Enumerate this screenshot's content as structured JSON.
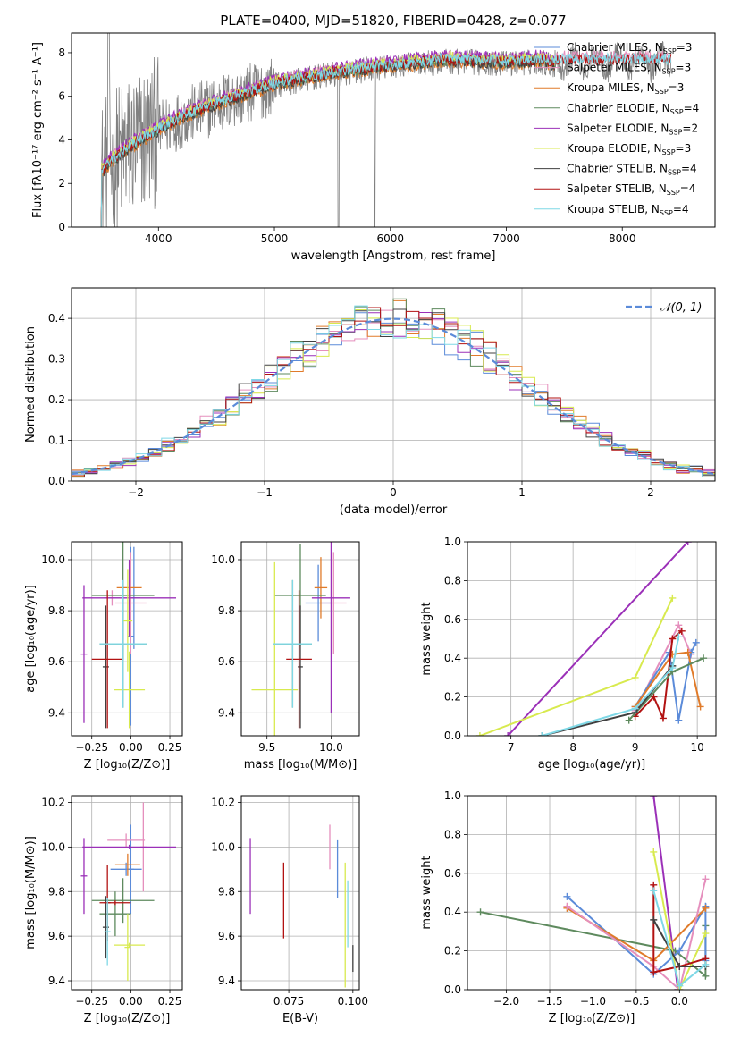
{
  "figure_title": "PLATE=0400, MJD=51820, FIBERID=0428, z=0.077",
  "chart_data": [
    {
      "id": "spectrum",
      "type": "line",
      "xlabel": "wavelength [Angstrom, rest frame]",
      "ylabel": "Flux [fλ10⁻¹⁷ erg cm⁻² s⁻¹ A⁻¹]",
      "xlim": [
        3250,
        8800
      ],
      "ylim": [
        0,
        8.9
      ],
      "xticks": [
        4000,
        5000,
        6000,
        7000,
        8000
      ],
      "yticks": [
        0,
        2,
        4,
        6,
        8
      ],
      "grid": false,
      "legend_position": "right",
      "observed_data_color": "#808080",
      "legend": [
        {
          "name": "Chabrier MILES, N_SSP=3",
          "label": "Chabrier MILES, N",
          "sub": "SSP",
          "value": "=3",
          "color": "#5b8bd9"
        },
        {
          "name": "Salpeter MILES, N_SSP=3",
          "label": "Salpeter MILES, N",
          "sub": "SSP",
          "value": "=3",
          "color": "#e58fbd"
        },
        {
          "name": "Kroupa MILES, N_SSP=3",
          "label": "Kroupa MILES, N",
          "sub": "SSP",
          "value": "=3",
          "color": "#e07b2a"
        },
        {
          "name": "Chabrier ELODIE, N_SSP=4",
          "label": "Chabrier ELODIE, N",
          "sub": "SSP",
          "value": "=4",
          "color": "#5e8a5e"
        },
        {
          "name": "Salpeter ELODIE, N_SSP=2",
          "label": "Salpeter ELODIE, N",
          "sub": "SSP",
          "value": "=2",
          "color": "#9b30b8"
        },
        {
          "name": "Kroupa ELODIE, N_SSP=3",
          "label": "Kroupa ELODIE, N",
          "sub": "SSP",
          "value": "=3",
          "color": "#d8ea4e"
        },
        {
          "name": "Chabrier STELIB, N_SSP=4",
          "label": "Chabrier STELIB, N",
          "sub": "SSP",
          "value": "=4",
          "color": "#404040"
        },
        {
          "name": "Salpeter STELIB, N_SSP=4",
          "label": "Salpeter STELIB, N",
          "sub": "SSP",
          "value": "=4",
          "color": "#b21212"
        },
        {
          "name": "Kroupa STELIB, N_SSP=4",
          "label": "Kroupa STELIB, N",
          "sub": "SSP",
          "value": "=4",
          "color": "#7fd8e6"
        }
      ],
      "continuum_shape": {
        "x": [
          3500,
          3600,
          3800,
          4000,
          4200,
          4500,
          5000,
          5500,
          6000,
          6500,
          7000,
          7300,
          7420
        ],
        "y": [
          2.4,
          3.0,
          3.8,
          4.4,
          5.0,
          5.6,
          6.5,
          7.0,
          7.35,
          7.6,
          7.5,
          7.6,
          7.4
        ]
      },
      "model_offsets": [
        0.15,
        0.25,
        -0.05,
        0.05,
        0.3,
        0.2,
        0.0,
        0.1,
        0.12
      ]
    },
    {
      "id": "residuals",
      "type": "step",
      "xlabel": "(data-model)/error",
      "ylabel": "Normed distribution",
      "xlim": [
        -2.5,
        2.5
      ],
      "ylim": [
        0,
        0.475
      ],
      "xticks": [
        -2,
        -1,
        0,
        1,
        2
      ],
      "xtick_labels": [
        "−2",
        "−1",
        "0",
        "1",
        "2"
      ],
      "yticks": [
        0.0,
        0.1,
        0.2,
        0.3,
        0.4
      ],
      "ytick_labels": [
        "0.0",
        "0.1",
        "0.2",
        "0.3",
        "0.4"
      ],
      "grid": true,
      "legend_position": "upper right",
      "legend_label": "𝒩(0, 1)",
      "gaussian": {
        "mean": 0,
        "sigma": 1,
        "color": "#5b8bd9"
      },
      "bin_width": 0.1
    },
    {
      "id": "age-vs-Z",
      "type": "errorbar",
      "xlabel": "Z [log₁₀(Z/Z⊙)]",
      "ylabel": "age  [log₁₀(age/yr)]",
      "xlim": [
        -0.38,
        0.33
      ],
      "ylim": [
        9.31,
        10.07
      ],
      "xticks": [
        -0.25,
        0.0,
        0.25
      ],
      "xtick_labels": [
        "−0.25",
        "0.00",
        "0.25"
      ],
      "yticks": [
        9.4,
        9.6,
        9.8,
        10.0
      ],
      "ytick_labels": [
        "9.4",
        "9.6",
        "9.8",
        "10.0"
      ],
      "grid": true,
      "points": [
        {
          "x": 0.0,
          "xerr": 0.02,
          "y": 9.7,
          "yerr": 0.35,
          "color": "#5b8bd9"
        },
        {
          "x": 0.02,
          "xerr": 0.04,
          "y": 9.85,
          "yerr": 0.2,
          "color": "#5b8bd9"
        },
        {
          "x": 0.0,
          "xerr": 0.1,
          "y": 9.83,
          "yerr": 0.2,
          "color": "#e58fbd"
        },
        {
          "x": -0.12,
          "xerr": 0.05,
          "y": 9.85,
          "yerr": 0.03,
          "color": "#e58fbd"
        },
        {
          "x": -0.01,
          "xerr": 0.08,
          "y": 9.89,
          "yerr": 0.1,
          "color": "#e07b2a"
        },
        {
          "x": -0.05,
          "xerr": 0.2,
          "y": 9.86,
          "yerr": 0.25,
          "color": "#5e8a5e"
        },
        {
          "x": -0.05,
          "xerr": 0.15,
          "y": 9.67,
          "yerr": 0.25,
          "color": "#5e8a5e"
        },
        {
          "x": -0.01,
          "xerr": 0.3,
          "y": 9.85,
          "yerr": 0.15,
          "color": "#9b30b8"
        },
        {
          "x": -0.3,
          "xerr": 0.02,
          "y": 9.63,
          "yerr": 0.27,
          "color": "#9b30b8"
        },
        {
          "x": -0.01,
          "xerr": 0.1,
          "y": 9.49,
          "yerr": 0.15,
          "color": "#d8ea4e"
        },
        {
          "x": -0.02,
          "xerr": 0.03,
          "y": 9.76,
          "yerr": 0.2,
          "color": "#d8ea4e"
        },
        {
          "x": -0.16,
          "xerr": 0.02,
          "y": 9.58,
          "yerr": 0.24,
          "color": "#404040"
        },
        {
          "x": -0.15,
          "xerr": 0.1,
          "y": 9.61,
          "yerr": 0.27,
          "color": "#b21212"
        },
        {
          "x": -0.05,
          "xerr": 0.15,
          "y": 9.67,
          "yerr": 0.25,
          "color": "#7fd8e6"
        }
      ]
    },
    {
      "id": "age-vs-mass",
      "type": "errorbar",
      "xlabel": "mass [log₁₀(M/M⊙)]",
      "ylabel": "",
      "xlim": [
        9.3,
        10.22
      ],
      "ylim": [
        9.31,
        10.07
      ],
      "xticks": [
        9.5,
        10.0
      ],
      "xtick_labels": [
        "9.5",
        "10.0"
      ],
      "yticks": [
        9.4,
        9.6,
        9.8,
        10.0
      ],
      "ytick_labels": [
        "9.4",
        "9.6",
        "9.8",
        "10.0"
      ],
      "grid": true,
      "points": [
        {
          "x": 9.9,
          "xerr": 0.1,
          "y": 9.83,
          "yerr": 0.15,
          "color": "#5b8bd9"
        },
        {
          "x": 10.02,
          "xerr": 0.1,
          "y": 9.83,
          "yerr": 0.2,
          "color": "#e58fbd"
        },
        {
          "x": 9.92,
          "xerr": 0.05,
          "y": 9.89,
          "yerr": 0.12,
          "color": "#e07b2a"
        },
        {
          "x": 9.76,
          "xerr": 0.2,
          "y": 9.86,
          "yerr": 0.2,
          "color": "#5e8a5e"
        },
        {
          "x": 9.7,
          "xerr": 0.15,
          "y": 9.67,
          "yerr": 0.25,
          "color": "#5e8a5e"
        },
        {
          "x": 10.0,
          "xerr": 0.15,
          "y": 9.85,
          "yerr": 0.45,
          "color": "#9b30b8"
        },
        {
          "x": 9.56,
          "xerr": 0.18,
          "y": 9.49,
          "yerr": 0.5,
          "color": "#d8ea4e"
        },
        {
          "x": 9.76,
          "xerr": 0.02,
          "y": 9.58,
          "yerr": 0.24,
          "color": "#404040"
        },
        {
          "x": 9.75,
          "xerr": 0.1,
          "y": 9.61,
          "yerr": 0.27,
          "color": "#b21212"
        },
        {
          "x": 9.7,
          "xerr": 0.15,
          "y": 9.67,
          "yerr": 0.25,
          "color": "#7fd8e6"
        }
      ]
    },
    {
      "id": "weight-vs-age",
      "type": "line",
      "xlabel": "age  [log₁₀(age/yr)]",
      "ylabel": "mass weight",
      "xlim": [
        6.3,
        10.3
      ],
      "ylim": [
        0,
        1.0
      ],
      "xticks": [
        7,
        8,
        9,
        10
      ],
      "xtick_labels": [
        "7",
        "8",
        "9",
        "10"
      ],
      "yticks": [
        0.0,
        0.2,
        0.4,
        0.6,
        0.8,
        1.0
      ],
      "ytick_labels": [
        "0.0",
        "0.2",
        "0.4",
        "0.6",
        "0.8",
        "1.0"
      ],
      "grid": true,
      "series": [
        {
          "color": "#9b30b8",
          "x": [
            6.95,
            9.85
          ],
          "y": [
            0.0,
            1.0
          ]
        },
        {
          "color": "#d8ea4e",
          "x": [
            6.5,
            9.0,
            9.6
          ],
          "y": [
            0.0,
            0.3,
            0.71
          ]
        },
        {
          "color": "#e58fbd",
          "x": [
            9.0,
            9.7,
            9.9
          ],
          "y": [
            0.13,
            0.57,
            0.42
          ]
        },
        {
          "color": "#5b8bd9",
          "x": [
            9.0,
            9.55,
            9.7,
            9.9,
            9.98
          ],
          "y": [
            0.15,
            0.43,
            0.08,
            0.43,
            0.48
          ]
        },
        {
          "color": "#e07b2a",
          "x": [
            9.0,
            9.6,
            9.85,
            10.05
          ],
          "y": [
            0.15,
            0.42,
            0.43,
            0.15
          ]
        },
        {
          "color": "#b21212",
          "x": [
            9.0,
            9.3,
            9.45,
            9.6,
            9.75
          ],
          "y": [
            0.1,
            0.2,
            0.09,
            0.5,
            0.54
          ]
        },
        {
          "color": "#5e8a5e",
          "x": [
            8.9,
            9.6,
            10.1
          ],
          "y": [
            0.08,
            0.33,
            0.4
          ]
        },
        {
          "color": "#404040",
          "x": [
            7.5,
            9.0,
            9.6
          ],
          "y": [
            0.0,
            0.12,
            0.36
          ]
        },
        {
          "color": "#7fd8e6",
          "x": [
            7.5,
            9.0,
            9.6,
            9.7
          ],
          "y": [
            0.0,
            0.14,
            0.35,
            0.51
          ]
        }
      ]
    },
    {
      "id": "mass-vs-Z",
      "type": "errorbar",
      "xlabel": "Z [log₁₀(Z/Z⊙)]",
      "ylabel": "mass [log₁₀(M/M⊙)]",
      "xlim": [
        -0.38,
        0.33
      ],
      "ylim": [
        9.36,
        10.23
      ],
      "xticks": [
        -0.25,
        0.0,
        0.25
      ],
      "xtick_labels": [
        "−0.25",
        "0.00",
        "0.25"
      ],
      "yticks": [
        9.4,
        9.6,
        9.8,
        10.0,
        10.2
      ],
      "ytick_labels": [
        "9.4",
        "9.6",
        "9.8",
        "10.0",
        "10.2"
      ],
      "grid": true,
      "points": [
        {
          "x": -0.03,
          "xerr": 0.1,
          "y": 9.9,
          "yerr": 0.03,
          "color": "#5b8bd9"
        },
        {
          "x": 0.0,
          "xerr": 0.02,
          "y": 9.9,
          "yerr": 0.2,
          "color": "#5b8bd9"
        },
        {
          "x": -0.03,
          "xerr": 0.12,
          "y": 10.03,
          "yerr": 0.03,
          "color": "#e58fbd"
        },
        {
          "x": 0.08,
          "xerr": 0.02,
          "y": 10.0,
          "yerr": 0.2,
          "color": "#e58fbd"
        },
        {
          "x": -0.02,
          "xerr": 0.08,
          "y": 9.92,
          "yerr": 0.05,
          "color": "#e07b2a"
        },
        {
          "x": -0.05,
          "xerr": 0.2,
          "y": 9.76,
          "yerr": 0.1,
          "color": "#5e8a5e"
        },
        {
          "x": -0.1,
          "xerr": 0.1,
          "y": 9.7,
          "yerr": 0.1,
          "color": "#5e8a5e"
        },
        {
          "x": -0.01,
          "xerr": 0.3,
          "y": 10.0,
          "yerr": 0.01,
          "color": "#9b30b8"
        },
        {
          "x": -0.3,
          "xerr": 0.02,
          "y": 9.87,
          "yerr": 0.17,
          "color": "#9b30b8"
        },
        {
          "x": -0.01,
          "xerr": 0.1,
          "y": 9.56,
          "yerr": 0.01,
          "color": "#d8ea4e"
        },
        {
          "x": -0.02,
          "xerr": 0.02,
          "y": 9.55,
          "yerr": 0.15,
          "color": "#d8ea4e"
        },
        {
          "x": -0.16,
          "xerr": 0.02,
          "y": 9.64,
          "yerr": 0.14,
          "color": "#404040"
        },
        {
          "x": -0.1,
          "xerr": 0.1,
          "y": 9.75,
          "yerr": 0.01,
          "color": "#b21212"
        },
        {
          "x": -0.15,
          "xerr": 0.02,
          "y": 9.75,
          "yerr": 0.17,
          "color": "#b21212"
        },
        {
          "x": -0.15,
          "xerr": 0.02,
          "y": 9.62,
          "yerr": 0.15,
          "color": "#7fd8e6"
        }
      ]
    },
    {
      "id": "mass-vs-ebv",
      "type": "errorbar",
      "xlabel": "E(B-V)",
      "ylabel": "",
      "xlim": [
        0.0565,
        0.1025
      ],
      "ylim": [
        9.36,
        10.23
      ],
      "xticks": [
        0.075,
        0.1
      ],
      "xtick_labels": [
        "0.075",
        "0.100"
      ],
      "yticks": [
        9.4,
        9.6,
        9.8,
        10.0,
        10.2
      ],
      "ytick_labels": [
        "9.4",
        "9.6",
        "9.8",
        "10.0",
        "10.2"
      ],
      "grid": true,
      "points": [
        {
          "x": 0.06,
          "y": 9.87,
          "yerr": 0.17,
          "color": "#9b30b8"
        },
        {
          "x": 0.073,
          "y": 9.76,
          "yerr": 0.17,
          "color": "#b21212"
        },
        {
          "x": 0.091,
          "y": 10.0,
          "yerr": 0.1,
          "color": "#e58fbd"
        },
        {
          "x": 0.094,
          "y": 9.9,
          "yerr": 0.13,
          "color": "#5b8bd9"
        },
        {
          "x": 0.097,
          "y": 9.65,
          "yerr": 0.28,
          "color": "#d8ea4e"
        },
        {
          "x": 0.098,
          "y": 9.7,
          "yerr": 0.15,
          "color": "#7fd8e6"
        },
        {
          "x": 0.1,
          "y": 9.5,
          "yerr": 0.06,
          "color": "#404040"
        }
      ]
    },
    {
      "id": "weight-vs-Z",
      "type": "line",
      "xlabel": "Z [log₁₀(Z/Z⊙)]",
      "ylabel": "mass weight",
      "xlim": [
        -2.45,
        0.42
      ],
      "ylim": [
        0,
        1.0
      ],
      "xticks": [
        -2.0,
        -1.5,
        -1.0,
        -0.5,
        0.0
      ],
      "xtick_labels": [
        "−2.0",
        "−1.5",
        "−1.0",
        "−0.5",
        "0.0"
      ],
      "yticks": [
        0.0,
        0.2,
        0.4,
        0.6,
        0.8,
        1.0
      ],
      "ytick_labels": [
        "0.0",
        "0.2",
        "0.4",
        "0.6",
        "0.8",
        "1.0"
      ],
      "grid": true,
      "series": [
        {
          "color": "#9b30b8",
          "x": [
            -0.3,
            -0.02
          ],
          "y": [
            1.0,
            0.0
          ]
        },
        {
          "color": "#5e8a5e",
          "x": [
            -2.3,
            -0.05,
            0.3,
            0.3
          ],
          "y": [
            0.4,
            0.2,
            0.07,
            0.33
          ]
        },
        {
          "color": "#5b8bd9",
          "x": [
            -1.3,
            -0.3,
            0.0,
            0.3,
            0.3
          ],
          "y": [
            0.48,
            0.08,
            0.2,
            0.43,
            0.15
          ]
        },
        {
          "color": "#e07b2a",
          "x": [
            -1.3,
            -0.3,
            0.3
          ],
          "y": [
            0.42,
            0.15,
            0.42
          ]
        },
        {
          "color": "#e58fbd",
          "x": [
            -1.3,
            -0.3,
            0.0,
            0.3
          ],
          "y": [
            0.43,
            0.12,
            0.0,
            0.57
          ]
        },
        {
          "color": "#d8ea4e",
          "x": [
            -0.3,
            0.0,
            0.3
          ],
          "y": [
            0.71,
            0.0,
            0.29
          ]
        },
        {
          "color": "#b21212",
          "x": [
            -0.3,
            -0.3,
            0.0,
            0.3
          ],
          "y": [
            0.54,
            0.09,
            0.12,
            0.16
          ]
        },
        {
          "color": "#404040",
          "x": [
            -0.3,
            0.0,
            0.3
          ],
          "y": [
            0.36,
            0.12,
            0.12
          ]
        },
        {
          "color": "#7fd8e6",
          "x": [
            -0.3,
            0.0,
            0.3
          ],
          "y": [
            0.51,
            0.02,
            0.13
          ]
        }
      ]
    }
  ]
}
